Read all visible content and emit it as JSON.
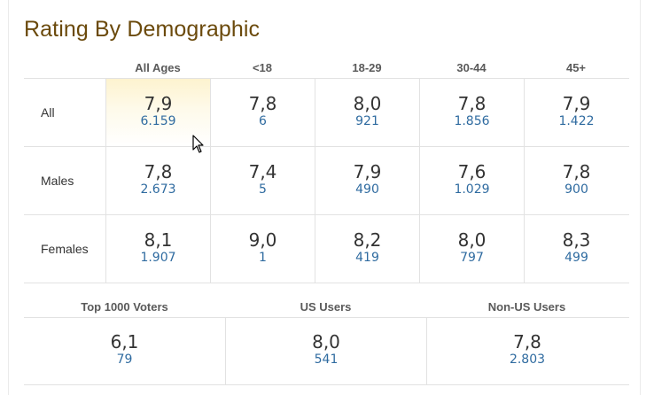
{
  "title": "Rating By Demographic",
  "demographics": {
    "columns": [
      "All Ages",
      "<18",
      "18-29",
      "30-44",
      "45+"
    ],
    "rows": [
      {
        "label": "All",
        "cells": [
          {
            "rating": "7,9",
            "votes": "6.159"
          },
          {
            "rating": "7,8",
            "votes": "6"
          },
          {
            "rating": "8,0",
            "votes": "921"
          },
          {
            "rating": "7,8",
            "votes": "1.856"
          },
          {
            "rating": "7,9",
            "votes": "1.422"
          }
        ]
      },
      {
        "label": "Males",
        "cells": [
          {
            "rating": "7,8",
            "votes": "2.673"
          },
          {
            "rating": "7,4",
            "votes": "5"
          },
          {
            "rating": "7,9",
            "votes": "490"
          },
          {
            "rating": "7,6",
            "votes": "1.029"
          },
          {
            "rating": "7,8",
            "votes": "900"
          }
        ]
      },
      {
        "label": "Females",
        "cells": [
          {
            "rating": "8,1",
            "votes": "1.907"
          },
          {
            "rating": "9,0",
            "votes": "1"
          },
          {
            "rating": "8,2",
            "votes": "419"
          },
          {
            "rating": "8,0",
            "votes": "797"
          },
          {
            "rating": "8,3",
            "votes": "499"
          }
        ]
      }
    ]
  },
  "user_groups": {
    "columns": [
      "Top 1000 Voters",
      "US Users",
      "Non-US Users"
    ],
    "cells": [
      {
        "rating": "6,1",
        "votes": "79"
      },
      {
        "rating": "8,0",
        "votes": "541"
      },
      {
        "rating": "7,8",
        "votes": "2.803"
      }
    ]
  },
  "colors": {
    "title": "#6b4a0c",
    "votes_link": "#2f6ba0",
    "highlight": "#fdf3cf"
  },
  "cursor_icon": "arrow-cursor-icon"
}
